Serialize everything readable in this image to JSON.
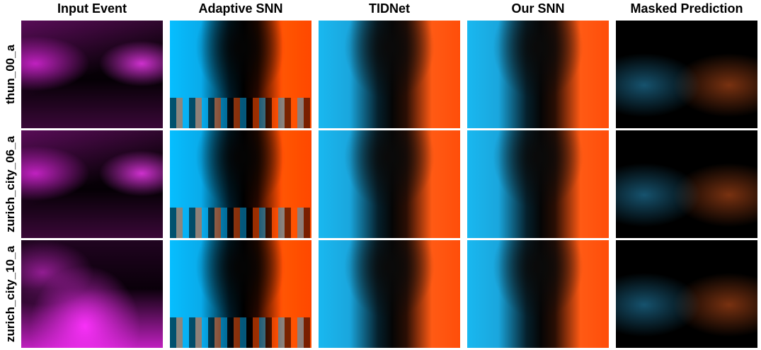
{
  "columns": [
    "Input Event",
    "Adaptive SNN",
    "TIDNet",
    "Our SNN",
    "Masked Prediction"
  ],
  "rows": [
    "thun_00_a",
    "zurich_city_06_a",
    "zurich_city_10_a"
  ]
}
